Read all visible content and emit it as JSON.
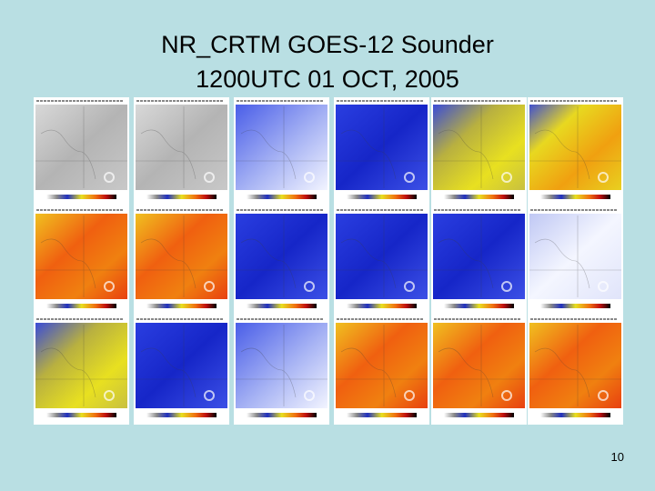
{
  "title": {
    "lines": [
      "NR_CRTM GOES-12 Sounder",
      "1200UTC 01 OCT, 2005"
    ]
  },
  "page_number": "10"
}
